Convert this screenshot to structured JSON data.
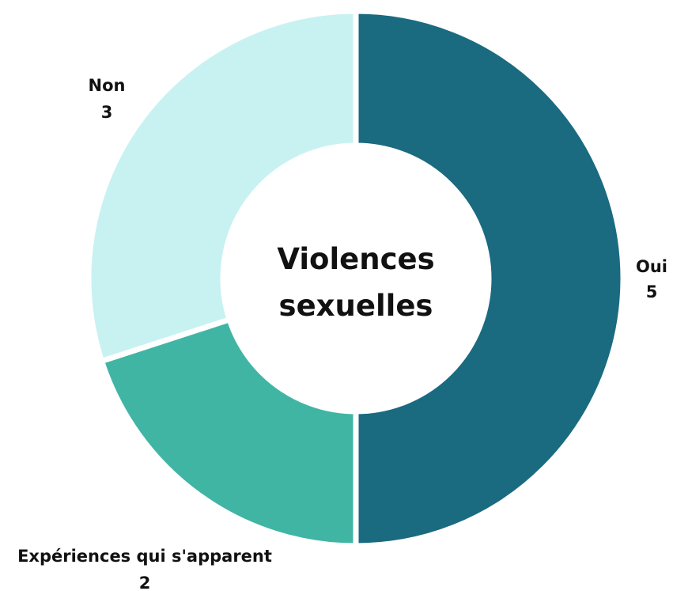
{
  "chart_data": {
    "type": "pie",
    "donut": true,
    "center_text": [
      "Violences",
      "sexuelles"
    ],
    "slices": [
      {
        "label": "Oui",
        "value": 5,
        "color": "#1a6a80"
      },
      {
        "label": "Expériences qui s'apparent",
        "value": 2,
        "color": "#40b5a4"
      },
      {
        "label": "Non",
        "value": 3,
        "color": "#c8f2f1"
      }
    ],
    "start_angle": "top",
    "direction": "clockwise"
  }
}
